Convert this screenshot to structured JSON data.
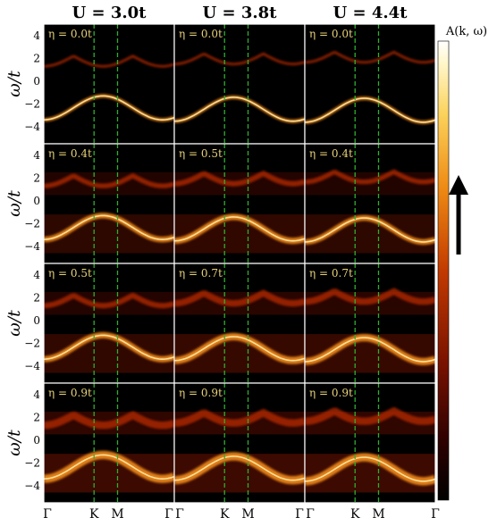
{
  "chart_data": {
    "type": "heatmap",
    "description_axis": {
      "ylabel": "ω/t",
      "yticks": [
        4,
        2,
        0,
        -2,
        -4
      ],
      "ylim": [
        -5.5,
        5
      ],
      "xticks": [
        "Γ",
        "K",
        "M",
        "Γ"
      ]
    },
    "columns": [
      {
        "title": "U = 3.0t",
        "U": 3.0
      },
      {
        "title": "U = 3.8t",
        "U": 3.8
      },
      {
        "title": "U = 4.4t",
        "U": 4.4
      }
    ],
    "panels": [
      [
        {
          "eta": "η = 0.0t",
          "eta_value": 0.0
        },
        {
          "eta": "η = 0.0t",
          "eta_value": 0.0
        },
        {
          "eta": "η = 0.0t",
          "eta_value": 0.0
        }
      ],
      [
        {
          "eta": "η = 0.4t",
          "eta_value": 0.4
        },
        {
          "eta": "η = 0.5t",
          "eta_value": 0.5
        },
        {
          "eta": "η = 0.4t",
          "eta_value": 0.4
        }
      ],
      [
        {
          "eta": "η = 0.5t",
          "eta_value": 0.5
        },
        {
          "eta": "η = 0.7t",
          "eta_value": 0.7
        },
        {
          "eta": "η = 0.7t",
          "eta_value": 0.7
        }
      ],
      [
        {
          "eta": "η = 0.9t",
          "eta_value": 0.9
        },
        {
          "eta": "η = 0.9t",
          "eta_value": 0.9
        },
        {
          "eta": "η = 0.9t",
          "eta_value": 0.9
        }
      ]
    ],
    "colorbar": {
      "label": "A(k, ω)",
      "colors": [
        "#000000",
        "#3a0000",
        "#8a1500",
        "#d24a00",
        "#f29a20",
        "#fbe27a",
        "#ffffff"
      ]
    },
    "reference_lines": {
      "positions": [
        "K",
        "M"
      ],
      "color": "#2fae2f",
      "style": "dashed"
    },
    "grid": false
  }
}
